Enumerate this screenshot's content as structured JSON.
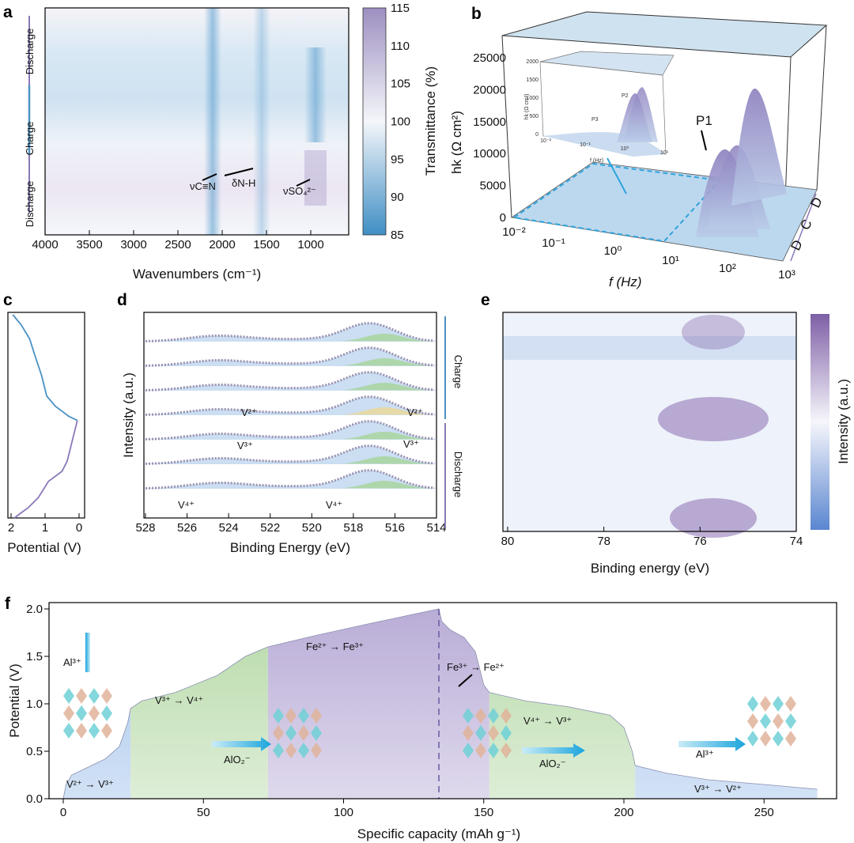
{
  "panels": {
    "a": {
      "letter": "a",
      "xlabel": "Wavenumbers (cm⁻¹)",
      "xticks": [
        "4000",
        "3500",
        "3000",
        "2500",
        "2000",
        "1500",
        "1000"
      ],
      "ylabels": [
        "Discharge",
        "Charge",
        "Discharge"
      ],
      "colorbar_label": "Transmittance (%)",
      "colorbar_ticks": [
        "115",
        "110",
        "105",
        "100",
        "95",
        "90",
        "85"
      ],
      "annotations": [
        "νC≡N",
        "δN-H",
        "νSO₄²⁻"
      ]
    },
    "b": {
      "letter": "b",
      "ylabel": "hk (Ω cm²)",
      "xlabel": "f (Hz)",
      "yticks": [
        "25000",
        "20000",
        "15000",
        "10000",
        "5000",
        "0"
      ],
      "xticks": [
        "10⁻²",
        "10⁻¹",
        "10⁰",
        "10¹",
        "10²",
        "10³"
      ],
      "depth_labels": [
        "D",
        "C",
        "D"
      ],
      "peak_label": "P1",
      "inset": {
        "yticks": [
          "2000",
          "1500",
          "1000",
          "500",
          "0"
        ],
        "xticks": [
          "10⁻²",
          "10⁻¹",
          "10⁰",
          "10¹"
        ],
        "ylabel": "hk (Ω cm²)",
        "xlabel": "f (Hz)",
        "peaks": [
          "P2",
          "P3"
        ]
      }
    },
    "c": {
      "letter": "c",
      "xlabel": "Potential (V)",
      "xticks": [
        "2",
        "1",
        "0"
      ]
    },
    "d": {
      "letter": "d",
      "xlabel": "Binding Energy (eV)",
      "ylabel": "Intensity (a.u.)",
      "xticks": [
        "528",
        "526",
        "524",
        "522",
        "520",
        "518",
        "516",
        "514"
      ],
      "side_labels": [
        "Charge",
        "Discharge"
      ],
      "annotations": [
        "V²⁺",
        "V²⁺",
        "V³⁺",
        "V³⁺",
        "V⁴⁺",
        "V⁴⁺"
      ]
    },
    "e": {
      "letter": "e",
      "xlabel": "Binding energy (eV)",
      "xticks": [
        "80",
        "78",
        "76",
        "74"
      ],
      "colorbar_label": "Intensity (a.u.)"
    }
  },
  "chart_data": [
    {
      "type": "line",
      "title": "f",
      "xlabel": "Specific capacity (mAh g⁻¹)",
      "ylabel": "Potential (V)",
      "xlim": [
        0,
        275
      ],
      "ylim": [
        0,
        2.05
      ],
      "xticks": [
        "0",
        "50",
        "100",
        "150",
        "200",
        "250"
      ],
      "yticks": [
        "0.0",
        "0.5",
        "1.0",
        "1.5",
        "2.0"
      ],
      "x": [
        0,
        1,
        3,
        8,
        15,
        20,
        23,
        24,
        28,
        40,
        55,
        65,
        73,
        90,
        110,
        134,
        135,
        138,
        143,
        147,
        150,
        152,
        165,
        180,
        195,
        200,
        203,
        204,
        215,
        230,
        250,
        269
      ],
      "y": [
        0,
        0.15,
        0.25,
        0.32,
        0.42,
        0.55,
        0.8,
        0.95,
        1.03,
        1.12,
        1.3,
        1.5,
        1.6,
        1.72,
        1.85,
        2.0,
        1.87,
        1.78,
        1.7,
        1.55,
        1.2,
        1.12,
        1.03,
        0.97,
        0.88,
        0.75,
        0.5,
        0.35,
        0.27,
        0.2,
        0.15,
        0.1
      ],
      "regions": [
        {
          "from": 0,
          "to": 24,
          "color": "#9ec0ea",
          "label": "V²⁺ → V³⁺"
        },
        {
          "from": 24,
          "to": 73,
          "color": "#b5d9a6",
          "label": "V³⁺ → V⁴⁺"
        },
        {
          "from": 73,
          "to": 152,
          "color": "#b8abd6",
          "label": "Fe²⁺ → Fe³⁺"
        },
        {
          "from": 152,
          "to": 204,
          "color": "#b5d9a6",
          "label": "V⁴⁺ → V³⁺"
        },
        {
          "from": 204,
          "to": 269,
          "color": "#9ec0ea",
          "label": "V³⁺ → V²⁺"
        }
      ],
      "dashed_line_x": 134,
      "annotations": [
        "Fe³⁺ → Fe²⁺",
        "Al³⁺",
        "AlO₂⁻",
        "AlO₂⁻",
        "Al³⁺"
      ]
    },
    {
      "type": "line",
      "title": "c",
      "xlabel": "Potential (V)",
      "xlim": [
        2,
        0
      ],
      "segments": [
        {
          "color": "#4a92c4",
          "potential": [
            1.95,
            1.7,
            1.45,
            1.3,
            1.1,
            0.95,
            0.7,
            0.3,
            0.05
          ],
          "time": [
            0,
            0.05,
            0.12,
            0.2,
            0.3,
            0.4,
            0.45,
            0.5,
            0.52
          ]
        },
        {
          "color": "#8a78b8",
          "potential": [
            0.05,
            0.2,
            0.35,
            0.5,
            0.9,
            1.2,
            1.5,
            1.75,
            1.9
          ],
          "time": [
            0.52,
            0.62,
            0.72,
            0.77,
            0.82,
            0.9,
            0.95,
            0.98,
            1.0
          ]
        }
      ]
    }
  ],
  "colors": {
    "blue": "#4a92c4",
    "purple": "#8a78b8",
    "green": "#8cc47a"
  }
}
